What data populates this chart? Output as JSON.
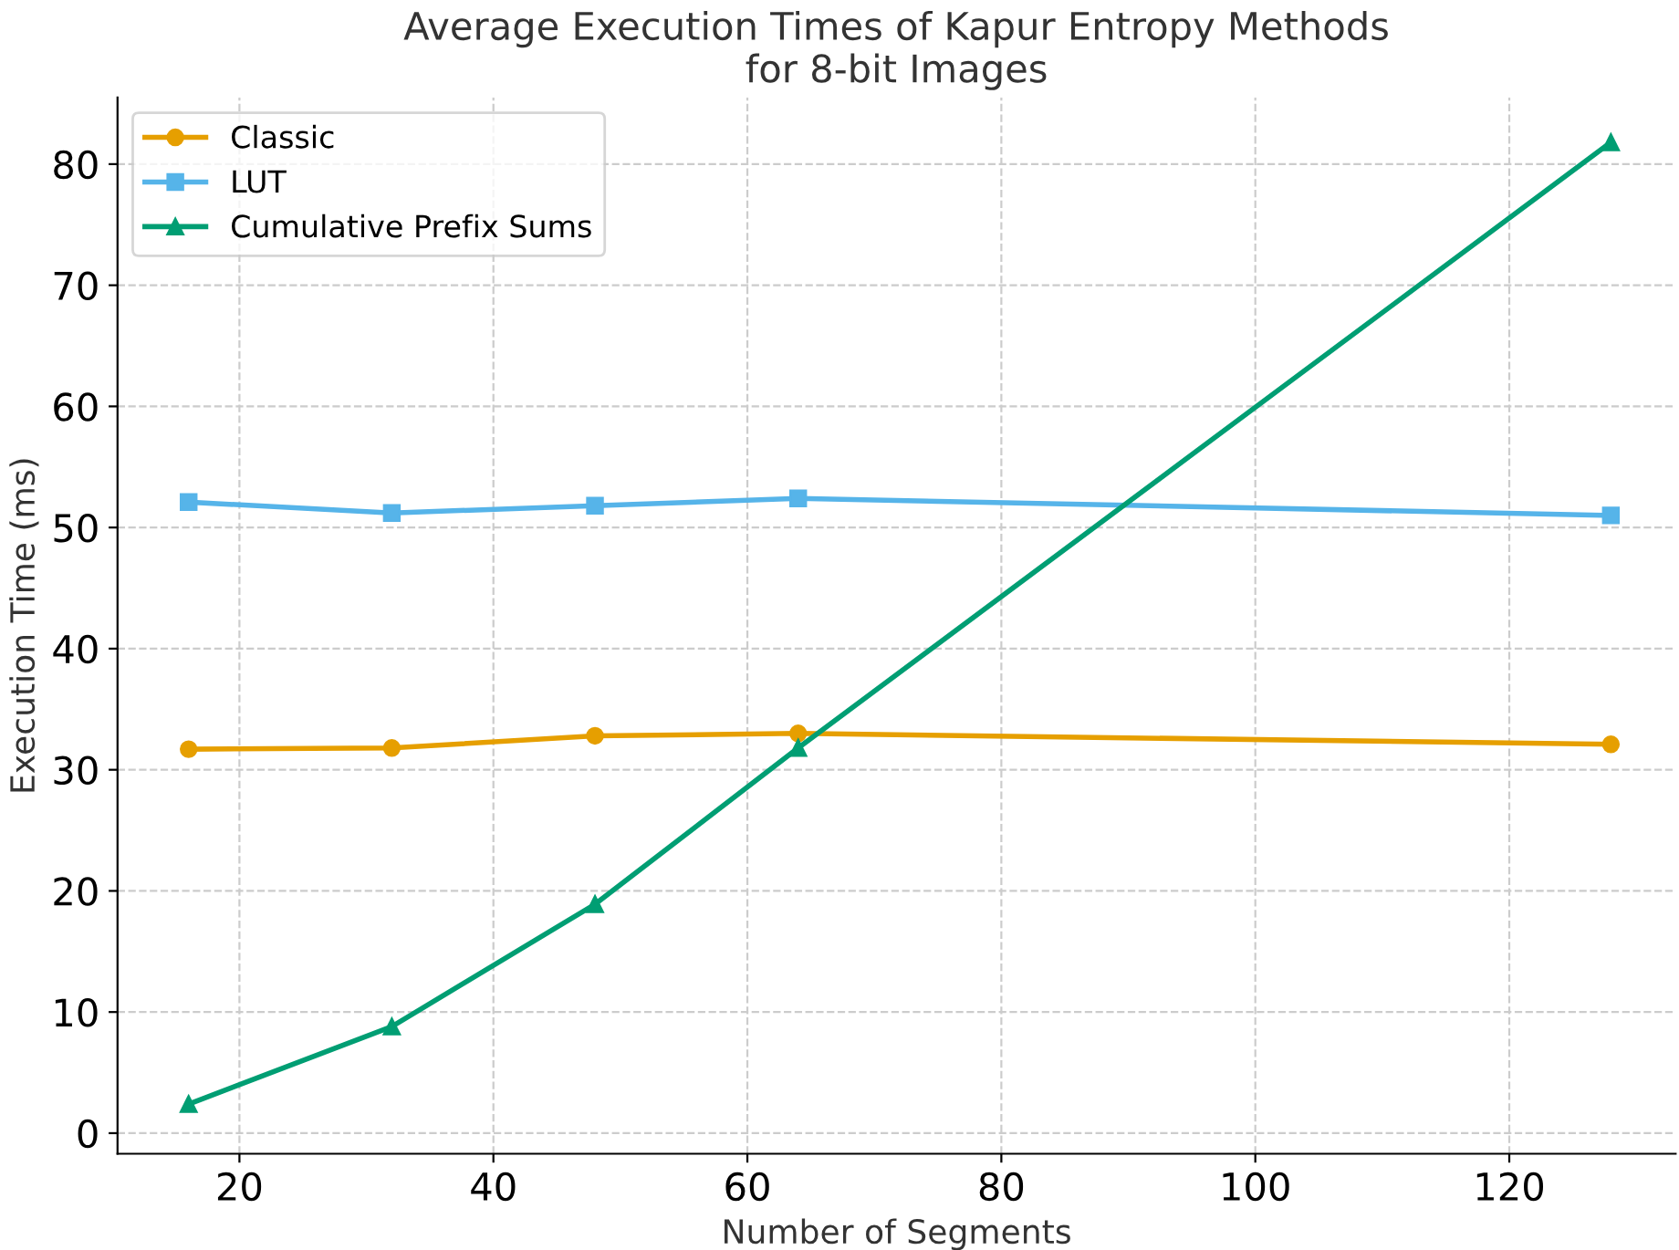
{
  "chart_data": {
    "type": "line",
    "title": "Average Execution Times of Kapur Entropy Methods\nfor 8-bit Images",
    "xlabel": "Number of Segments",
    "ylabel": "Execution Time (ms)",
    "x": [
      16,
      32,
      48,
      64,
      128
    ],
    "series": [
      {
        "name": "Classic",
        "color": "#e69f00",
        "marker": "circle",
        "values": [
          31.7,
          31.8,
          32.8,
          33.0,
          32.1
        ]
      },
      {
        "name": "LUT",
        "color": "#56b4e9",
        "marker": "square",
        "values": [
          52.1,
          51.2,
          51.8,
          52.4,
          51.0
        ]
      },
      {
        "name": "Cumulative Prefix Sums",
        "color": "#009e73",
        "marker": "triangle",
        "values": [
          2.4,
          8.8,
          18.9,
          31.8,
          81.8
        ]
      }
    ],
    "xlim": [
      10.4,
      133.1
    ],
    "xticks": [
      20,
      40,
      60,
      80,
      100,
      120
    ],
    "ylim": [
      -1.7,
      85.5
    ],
    "yticks": [
      0,
      10,
      20,
      30,
      40,
      50,
      60,
      70,
      80
    ],
    "grid": true,
    "legend": "top left",
    "line_style": "solid"
  }
}
